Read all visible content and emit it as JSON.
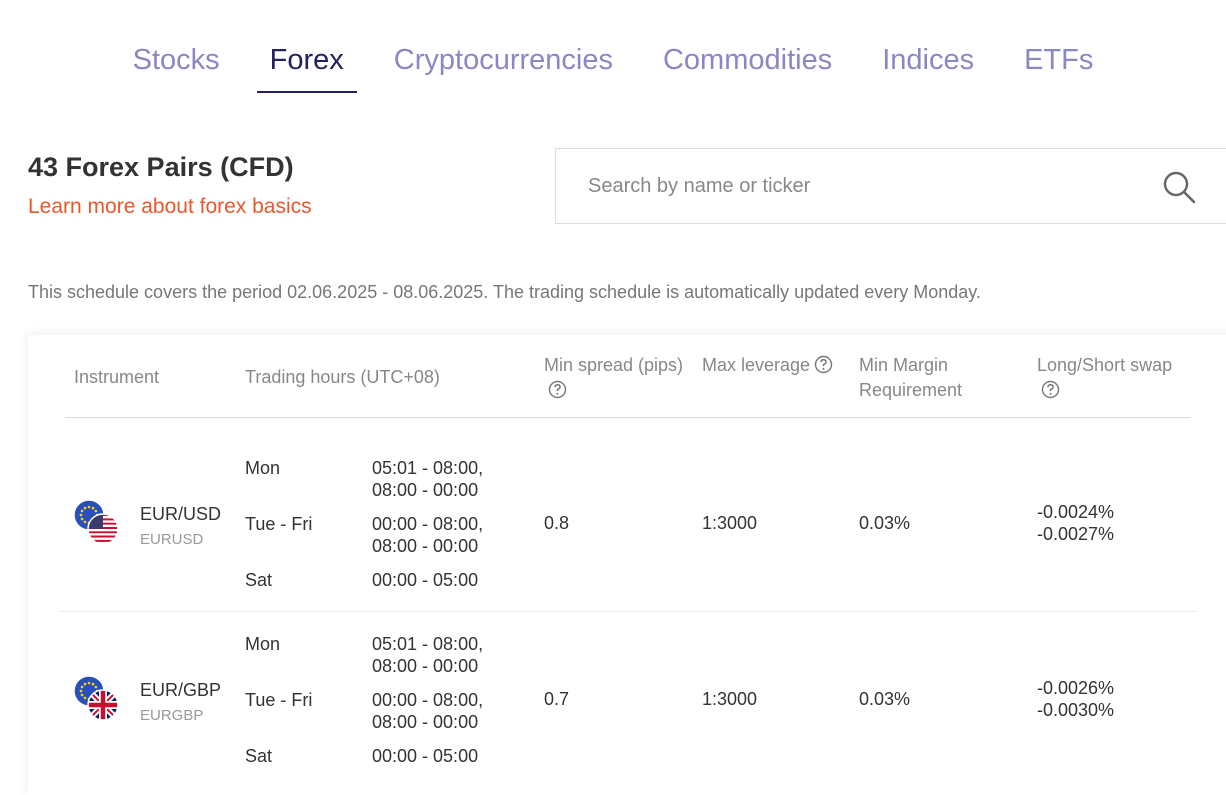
{
  "tabs": [
    "Stocks",
    "Forex",
    "Cryptocurrencies",
    "Commodities",
    "Indices",
    "ETFs"
  ],
  "active_tab": "Forex",
  "heading": {
    "title": "43 Forex Pairs (CFD)",
    "link": "Learn more about forex basics"
  },
  "search": {
    "placeholder": "Search by name or ticker"
  },
  "notice": "This schedule covers the period 02.06.2025 - 08.06.2025. The trading schedule is automatically updated every Monday.",
  "table": {
    "columns": [
      {
        "label": "Instrument",
        "help": false
      },
      {
        "label": "Trading hours (UTC+08)",
        "help": false
      },
      {
        "label": "Min spread (pips)",
        "help": true
      },
      {
        "label": "Max leverage",
        "help": true
      },
      {
        "label": "Min Margin Requirement",
        "help": false
      },
      {
        "label": "Long/Short swap",
        "help": true
      }
    ],
    "rows": [
      {
        "name": "EUR/USD",
        "ticker": "EURUSD",
        "flags": [
          "eu",
          "us"
        ],
        "hours": [
          {
            "days": "Mon",
            "times": "05:01 - 08:00, 08:00 - 00:00"
          },
          {
            "days": "Tue - Fri",
            "times": "00:00 - 08:00, 08:00 - 00:00"
          },
          {
            "days": "Sat",
            "times": "00:00 - 05:00"
          }
        ],
        "spread": "0.8",
        "leverage": "1:3000",
        "margin": "0.03%",
        "swap": [
          "-0.0024%",
          "-0.0027%"
        ]
      },
      {
        "name": "EUR/GBP",
        "ticker": "EURGBP",
        "flags": [
          "eu",
          "gb"
        ],
        "hours": [
          {
            "days": "Mon",
            "times": "05:01 - 08:00, 08:00 - 00:00"
          },
          {
            "days": "Tue - Fri",
            "times": "00:00 - 08:00, 08:00 - 00:00"
          },
          {
            "days": "Sat",
            "times": "00:00 - 05:00"
          }
        ],
        "spread": "0.7",
        "leverage": "1:3000",
        "margin": "0.03%",
        "swap": [
          "-0.0026%",
          "-0.0030%"
        ]
      }
    ]
  }
}
